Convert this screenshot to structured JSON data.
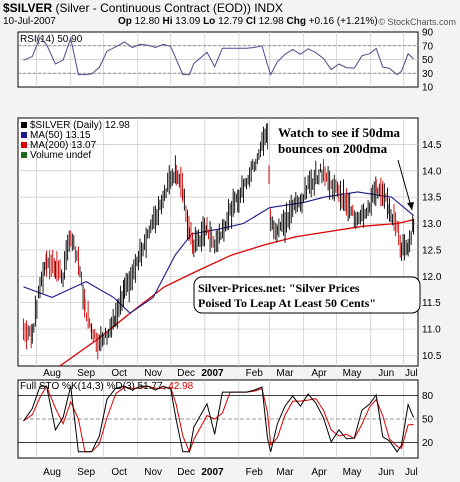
{
  "header": {
    "symbol": "$SILVER",
    "description": "(Silver - Continuous Contract (EOD))",
    "exchange": "INDX",
    "date": "10-Jul-2007",
    "quote": {
      "op_label": "Op",
      "op": "12.80",
      "hi_label": "Hi",
      "hi": "13.09",
      "lo_label": "Lo",
      "lo": "12.79",
      "cl_label": "Cl",
      "cl": "12.98",
      "chg_label": "Chg",
      "chg": "+0.16 (+1.21%)"
    },
    "watermark": "© StockCharts.com"
  },
  "chart_data": [
    {
      "type": "line",
      "panel": "rsi",
      "legend": "RSI(14) 50.90",
      "yticks": [
        "90",
        "70",
        "50",
        "30",
        "10"
      ],
      "ylim": [
        10,
        90
      ],
      "guides": [
        70,
        30
      ]
    },
    {
      "type": "candlestick",
      "panel": "price",
      "legend": [
        {
          "text": "$SILVER (Daily) 12.98",
          "color": "#000000"
        },
        {
          "text": "MA(50) 13.15",
          "color": "#1a1a8c"
        },
        {
          "text": "MA(200) 13.07",
          "color": "#dd0000"
        },
        {
          "text": "Volume undef",
          "color": "#1f6b1f"
        }
      ],
      "yticks": [
        "14.5",
        "14.0",
        "13.5",
        "13.0",
        "12.5",
        "12.0",
        "11.5",
        "11.0",
        "10.5"
      ],
      "ylim": [
        10.3,
        15.0
      ],
      "close_path": [
        [
          "2006-07-20",
          11.0
        ],
        [
          "2006-07-28",
          10.9
        ],
        [
          "2006-08-04",
          11.8
        ],
        [
          "2006-08-10",
          12.3
        ],
        [
          "2006-08-18",
          12.2
        ],
        [
          "2006-08-25",
          12.0
        ],
        [
          "2006-09-01",
          12.8
        ],
        [
          "2006-09-08",
          12.3
        ],
        [
          "2006-09-14",
          11.4
        ],
        [
          "2006-09-20",
          11.0
        ],
        [
          "2006-09-27",
          10.7
        ],
        [
          "2006-10-04",
          10.9
        ],
        [
          "2006-10-12",
          11.2
        ],
        [
          "2006-10-20",
          11.7
        ],
        [
          "2006-10-27",
          12.0
        ],
        [
          "2006-11-03",
          12.4
        ],
        [
          "2006-11-10",
          12.8
        ],
        [
          "2006-11-17",
          13.1
        ],
        [
          "2006-11-24",
          13.5
        ],
        [
          "2006-12-01",
          13.9
        ],
        [
          "2006-12-06",
          14.0
        ],
        [
          "2006-12-12",
          13.6
        ],
        [
          "2006-12-18",
          12.8
        ],
        [
          "2006-12-22",
          12.6
        ],
        [
          "2007-01-03",
          12.9
        ],
        [
          "2007-01-10",
          12.6
        ],
        [
          "2007-01-17",
          12.9
        ],
        [
          "2007-01-24",
          13.2
        ],
        [
          "2007-02-01",
          13.5
        ],
        [
          "2007-02-08",
          13.8
        ],
        [
          "2007-02-15",
          14.1
        ],
        [
          "2007-02-22",
          14.5
        ],
        [
          "2007-02-27",
          14.7
        ],
        [
          "2007-03-02",
          13.0
        ],
        [
          "2007-03-08",
          12.9
        ],
        [
          "2007-03-15",
          13.0
        ],
        [
          "2007-03-22",
          13.3
        ],
        [
          "2007-03-29",
          13.4
        ],
        [
          "2007-04-05",
          13.7
        ],
        [
          "2007-04-12",
          13.9
        ],
        [
          "2007-04-19",
          14.0
        ],
        [
          "2007-04-26",
          13.7
        ],
        [
          "2007-05-03",
          13.6
        ],
        [
          "2007-05-10",
          13.4
        ],
        [
          "2007-05-17",
          13.1
        ],
        [
          "2007-05-24",
          13.2
        ],
        [
          "2007-05-31",
          13.3
        ],
        [
          "2007-06-06",
          13.7
        ],
        [
          "2007-06-12",
          13.5
        ],
        [
          "2007-06-18",
          13.3
        ],
        [
          "2007-06-25",
          12.9
        ],
        [
          "2007-06-29",
          12.5
        ],
        [
          "2007-07-05",
          12.6
        ],
        [
          "2007-07-10",
          12.98
        ]
      ],
      "ma50": [
        [
          "2006-07-20",
          11.8
        ],
        [
          "2006-08-15",
          11.6
        ],
        [
          "2006-09-15",
          11.9
        ],
        [
          "2006-10-10",
          11.6
        ],
        [
          "2006-10-25",
          11.3
        ],
        [
          "2006-11-15",
          11.6
        ],
        [
          "2006-12-05",
          12.4
        ],
        [
          "2006-12-20",
          12.8
        ],
        [
          "2007-01-15",
          12.9
        ],
        [
          "2007-02-05",
          13.0
        ],
        [
          "2007-03-01",
          13.3
        ],
        [
          "2007-04-01",
          13.4
        ],
        [
          "2007-04-20",
          13.5
        ],
        [
          "2007-05-20",
          13.6
        ],
        [
          "2007-06-20",
          13.5
        ],
        [
          "2007-07-10",
          13.15
        ]
      ],
      "ma200": [
        [
          "2006-08-22",
          10.3
        ],
        [
          "2006-09-25",
          10.8
        ],
        [
          "2006-10-25",
          11.3
        ],
        [
          "2006-11-25",
          11.8
        ],
        [
          "2006-12-25",
          12.1
        ],
        [
          "2007-01-25",
          12.4
        ],
        [
          "2007-02-25",
          12.6
        ],
        [
          "2007-03-25",
          12.75
        ],
        [
          "2007-04-25",
          12.85
        ],
        [
          "2007-05-25",
          12.95
        ],
        [
          "2007-06-25",
          13.0
        ],
        [
          "2007-07-10",
          13.07
        ]
      ],
      "annotations": [
        {
          "id": "watch",
          "lines": [
            "Watch to see if 50dma",
            "bounces on 200dma"
          ]
        },
        {
          "id": "headline",
          "lines": [
            "Silver-Prices.net: \"Silver Prices",
            "Poised To Leap At Least 50 Cents\""
          ]
        }
      ]
    },
    {
      "type": "line",
      "panel": "stochastic",
      "legend": [
        {
          "text": "Full STO %K(14,3) %D(3) 51.77,",
          "color": "#000000"
        },
        {
          "text": "42.98",
          "color": "#dd0000"
        }
      ],
      "yticks": [
        "80",
        "50",
        "20"
      ],
      "ylim": [
        0,
        100
      ],
      "guides": [
        80,
        50,
        20
      ]
    }
  ],
  "x_axis": {
    "labels": [
      "Aug",
      "Sep",
      "Oct",
      "Nov",
      "Dec",
      "2007",
      "Feb",
      "Mar",
      "Apr",
      "May",
      "Jun",
      "Jul"
    ],
    "bold_label": "2007"
  },
  "colors": {
    "panel_bg": "#ffffff",
    "frame_bg": "#f3f3f3",
    "grid": "#c8c8c8",
    "ma50": "#1a1a8c",
    "ma200": "#dd0000",
    "price": "#000000",
    "down": "#cc0000"
  }
}
